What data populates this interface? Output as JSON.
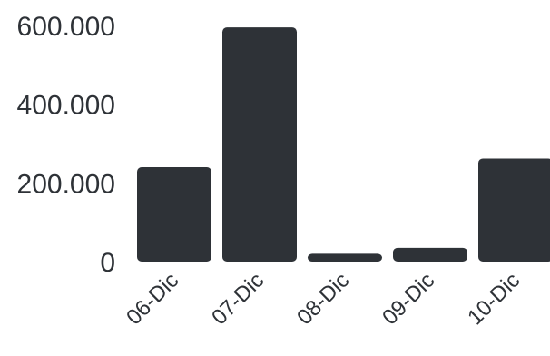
{
  "chart_data": {
    "type": "bar",
    "categories": [
      "06-Dic",
      "07-Dic",
      "08-Dic",
      "09-Dic",
      "10-Dic"
    ],
    "values": [
      240000,
      595000,
      20000,
      35000,
      262000
    ],
    "ylim": [
      0,
      600000
    ],
    "yticks": [
      0,
      200000,
      400000,
      600000
    ],
    "ytick_labels": [
      "0",
      "200.000",
      "400.000",
      "600.000"
    ],
    "grid": false,
    "bar_color": "#2e3237"
  }
}
